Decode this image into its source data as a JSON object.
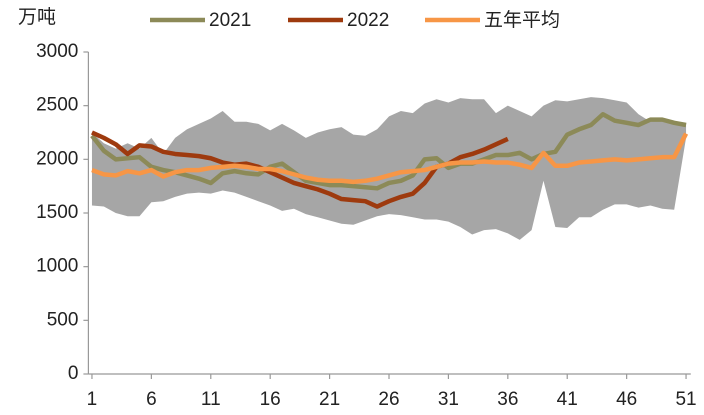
{
  "chart_data": {
    "type": "line",
    "y_unit_label": "万吨",
    "x": [
      1,
      2,
      3,
      4,
      5,
      6,
      7,
      8,
      9,
      10,
      11,
      12,
      13,
      14,
      15,
      16,
      17,
      18,
      19,
      20,
      21,
      22,
      23,
      24,
      25,
      26,
      27,
      28,
      29,
      30,
      31,
      32,
      33,
      34,
      35,
      36,
      37,
      38,
      39,
      40,
      41,
      42,
      43,
      44,
      45,
      46,
      47,
      48,
      49,
      50,
      51
    ],
    "xlim": [
      0.7,
      51.4
    ],
    "xticks": [
      1,
      6,
      11,
      16,
      21,
      26,
      31,
      36,
      41,
      46,
      51
    ],
    "ylim": [
      0,
      3000
    ],
    "yticks": [
      0,
      500,
      1000,
      1500,
      2000,
      2500,
      3000
    ],
    "band": {
      "color": "#a6a6a6",
      "upper": [
        2250,
        2150,
        2100,
        2150,
        2100,
        2200,
        2050,
        2200,
        2280,
        2330,
        2380,
        2450,
        2350,
        2350,
        2330,
        2270,
        2330,
        2270,
        2200,
        2250,
        2280,
        2300,
        2230,
        2220,
        2280,
        2400,
        2450,
        2430,
        2520,
        2560,
        2530,
        2570,
        2560,
        2560,
        2430,
        2500,
        2450,
        2400,
        2500,
        2550,
        2540,
        2560,
        2580,
        2570,
        2550,
        2530,
        2420,
        2350,
        2380,
        2350,
        2330
      ],
      "lower": [
        1570,
        1560,
        1500,
        1470,
        1470,
        1600,
        1610,
        1650,
        1680,
        1690,
        1680,
        1710,
        1690,
        1650,
        1610,
        1570,
        1520,
        1540,
        1490,
        1460,
        1430,
        1400,
        1390,
        1430,
        1470,
        1490,
        1480,
        1460,
        1440,
        1440,
        1420,
        1370,
        1300,
        1340,
        1350,
        1310,
        1250,
        1340,
        1800,
        1370,
        1360,
        1460,
        1460,
        1530,
        1580,
        1580,
        1550,
        1570,
        1540,
        1530,
        2200
      ]
    },
    "series": [
      {
        "name": "2021",
        "color": "#8c8a58",
        "values": [
          2220,
          2080,
          2000,
          2010,
          2020,
          1930,
          1900,
          1880,
          1850,
          1820,
          1780,
          1870,
          1890,
          1870,
          1860,
          1930,
          1960,
          1880,
          1800,
          1780,
          1760,
          1760,
          1750,
          1740,
          1730,
          1780,
          1800,
          1850,
          2000,
          2010,
          1920,
          1960,
          1960,
          2000,
          2040,
          2040,
          2060,
          2000,
          2050,
          2070,
          2230,
          2280,
          2320,
          2420,
          2360,
          2340,
          2320,
          2370,
          2370,
          2340,
          2320
        ]
      },
      {
        "name": "2022",
        "color": "#9e3a0e",
        "values": [
          2250,
          2200,
          2140,
          2050,
          2130,
          2120,
          2070,
          2050,
          2040,
          2030,
          2010,
          1970,
          1950,
          1960,
          1930,
          1880,
          1830,
          1780,
          1750,
          1720,
          1680,
          1630,
          1620,
          1610,
          1560,
          1610,
          1650,
          1680,
          1780,
          1930,
          1960,
          2020,
          2050,
          2090,
          2140,
          2190,
          null,
          null,
          null,
          null,
          null,
          null,
          null,
          null,
          null,
          null,
          null,
          null,
          null,
          null,
          null
        ]
      },
      {
        "name": "五年平均",
        "color": "#f79646",
        "values": [
          1900,
          1860,
          1850,
          1890,
          1870,
          1900,
          1840,
          1880,
          1900,
          1900,
          1920,
          1930,
          1940,
          1930,
          1910,
          1910,
          1890,
          1860,
          1830,
          1810,
          1800,
          1800,
          1790,
          1800,
          1820,
          1850,
          1880,
          1890,
          1900,
          1930,
          1960,
          1970,
          1970,
          1980,
          1970,
          1970,
          1950,
          1920,
          2060,
          1940,
          1940,
          1970,
          1980,
          1990,
          2000,
          1990,
          2000,
          2010,
          2020,
          2020,
          2240
        ]
      }
    ]
  }
}
